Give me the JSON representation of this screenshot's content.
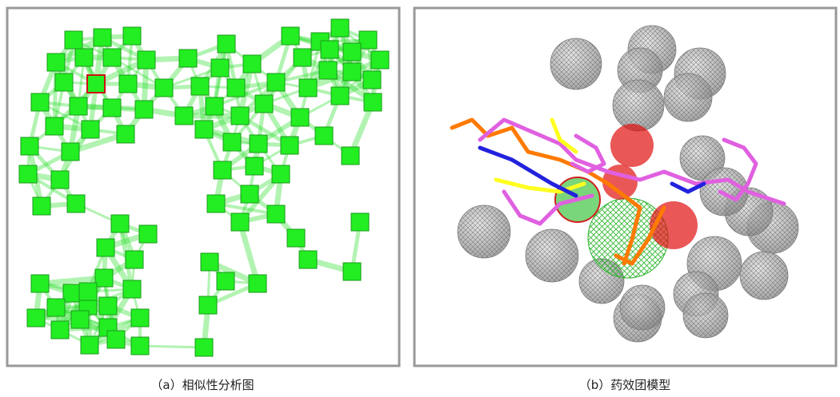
{
  "panels": [
    {
      "caption": "（a）相似性分析图"
    },
    {
      "caption": "（b）药效团模型"
    }
  ]
}
